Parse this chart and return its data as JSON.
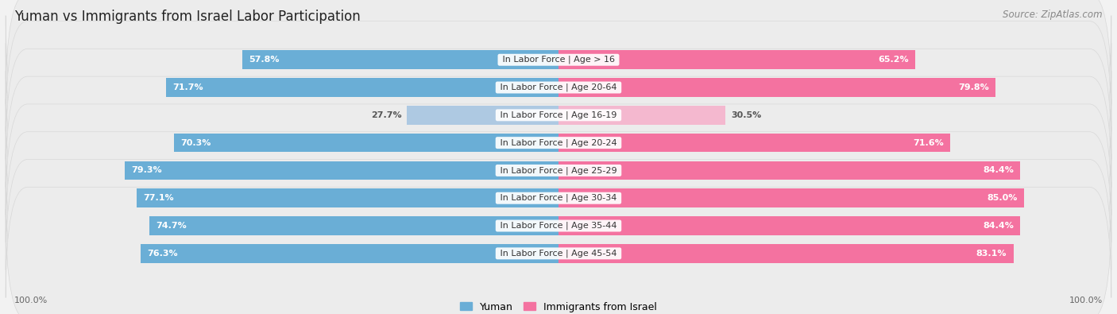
{
  "title": "Yuman vs Immigrants from Israel Labor Participation",
  "source": "Source: ZipAtlas.com",
  "categories": [
    "In Labor Force | Age > 16",
    "In Labor Force | Age 20-64",
    "In Labor Force | Age 16-19",
    "In Labor Force | Age 20-24",
    "In Labor Force | Age 25-29",
    "In Labor Force | Age 30-34",
    "In Labor Force | Age 35-44",
    "In Labor Force | Age 45-54"
  ],
  "yuman_values": [
    57.8,
    71.7,
    27.7,
    70.3,
    79.3,
    77.1,
    74.7,
    76.3
  ],
  "israel_values": [
    65.2,
    79.8,
    30.5,
    71.6,
    84.4,
    85.0,
    84.4,
    83.1
  ],
  "yuman_color": "#6aaed6",
  "yuman_color_light": "#aec9e2",
  "israel_color": "#f472a0",
  "israel_color_light": "#f4b8cf",
  "background_color": "#f2f2f2",
  "row_bg_odd": "#e8e8e8",
  "row_bg_even": "#f5f5f5",
  "title_fontsize": 12,
  "label_fontsize": 8,
  "value_fontsize": 8,
  "legend_fontsize": 9,
  "source_fontsize": 8.5
}
